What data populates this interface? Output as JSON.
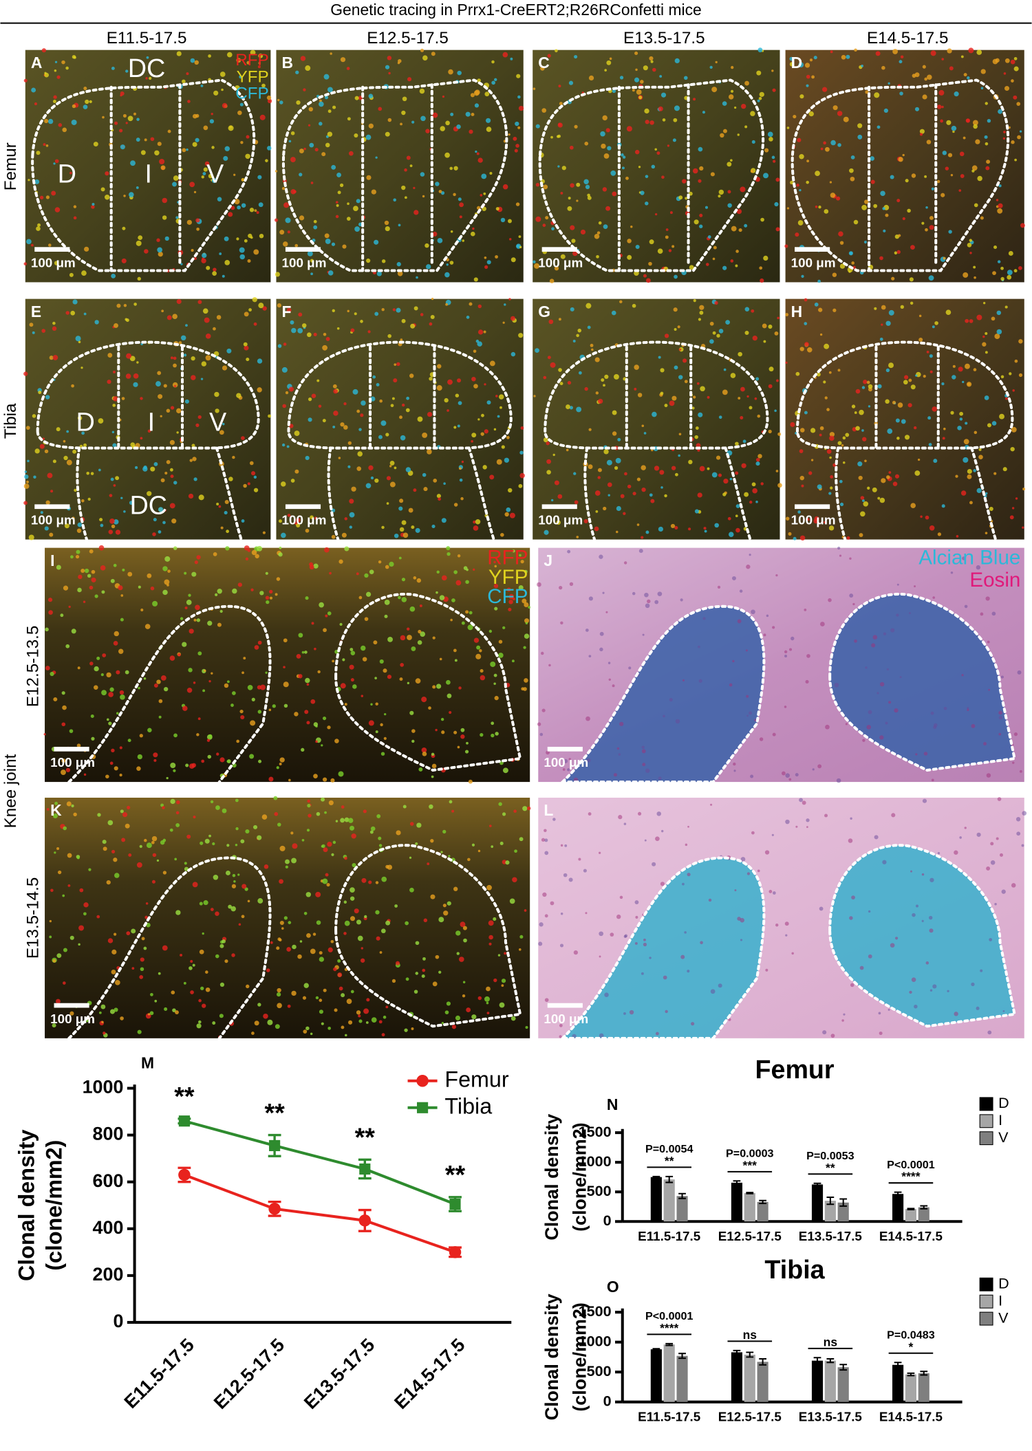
{
  "title": "Genetic tracing in Prrx1-CreERT2;R26RConfetti mice",
  "columns": [
    "E11.5-17.5",
    "E12.5-17.5",
    "E13.5-17.5",
    "E14.5-17.5"
  ],
  "rows": [
    "Femur",
    "Tibia",
    "Knee joint"
  ],
  "knee_rows": [
    "E12.5-13.5",
    "E13.5-14.5"
  ],
  "panels": [
    {
      "letter": "A",
      "scale_bar": "100 μm",
      "overlays": [
        "RFP",
        "YFP",
        "CFP",
        "DC",
        "D",
        "I",
        "V"
      ]
    },
    {
      "letter": "B",
      "scale_bar": "100 μm"
    },
    {
      "letter": "C",
      "scale_bar": "100 μm"
    },
    {
      "letter": "D",
      "scale_bar": "100 μm"
    },
    {
      "letter": "E",
      "scale_bar": "100 μm",
      "overlays": [
        "D",
        "I",
        "V",
        "DC"
      ]
    },
    {
      "letter": "F",
      "scale_bar": "100 μm"
    },
    {
      "letter": "G",
      "scale_bar": "100 μm"
    },
    {
      "letter": "H",
      "scale_bar": "100 μm"
    },
    {
      "letter": "I",
      "scale_bar": "100 μm",
      "overlays": [
        "RFP",
        "YFP",
        "CFP"
      ]
    },
    {
      "letter": "J",
      "scale_bar": "100 μm",
      "overlays": [
        "Alcian Blue",
        "Eosin"
      ]
    },
    {
      "letter": "K",
      "scale_bar": "100 μm"
    },
    {
      "letter": "L",
      "scale_bar": "100 μm"
    }
  ],
  "chart_data": [
    {
      "type": "line",
      "letter": "M",
      "ylabel": [
        "Clonal density",
        "(clone/mm2)"
      ],
      "categories": [
        "E11.5-17.5",
        "E12.5-17.5",
        "E13.5-17.5",
        "E14.5-17.5"
      ],
      "series": [
        {
          "name": "Femur",
          "color": "#e8231e",
          "marker": "circle",
          "values": [
            630,
            485,
            435,
            300
          ],
          "errors": [
            30,
            30,
            45,
            20
          ]
        },
        {
          "name": "Tibia",
          "color": "#2e8b2e",
          "marker": "square",
          "values": [
            860,
            755,
            655,
            505
          ],
          "errors": [
            10,
            45,
            40,
            30
          ]
        }
      ],
      "annotations": [
        "**",
        "**",
        "**",
        "**"
      ],
      "ylim": [
        0,
        1000
      ],
      "yticks": [
        0,
        200,
        400,
        600,
        800,
        1000
      ],
      "legend": "top-right"
    },
    {
      "type": "bar",
      "letter": "N",
      "title": "Femur",
      "ylabel": [
        "Clonal density",
        "(clone/mm2)"
      ],
      "categories": [
        "E11.5-17.5",
        "E12.5-17.5",
        "E13.5-17.5",
        "E14.5-17.5"
      ],
      "series": [
        {
          "name": "D",
          "color": "#000000",
          "values": [
            750,
            655,
            625,
            465
          ],
          "errors": [
            10,
            30,
            20,
            30
          ]
        },
        {
          "name": "I",
          "color": "#a6a6a6",
          "values": [
            710,
            480,
            350,
            210
          ],
          "errors": [
            50,
            10,
            60,
            10
          ]
        },
        {
          "name": "V",
          "color": "#7f7f7f",
          "values": [
            430,
            330,
            320,
            240
          ],
          "errors": [
            40,
            25,
            60,
            25
          ]
        }
      ],
      "annotations": [
        {
          "p": "P=0.0054",
          "stars": "**"
        },
        {
          "p": "P=0.0003",
          "stars": "***"
        },
        {
          "p": "P=0.0053",
          "stars": "**"
        },
        {
          "p": "P<0.0001",
          "stars": "****"
        }
      ],
      "ylim": [
        0,
        1500
      ],
      "yticks": [
        0,
        500,
        1000,
        1500
      ],
      "legend": "top-right"
    },
    {
      "type": "bar",
      "letter": "O",
      "title": "Tibia",
      "ylabel": [
        "Clonal density",
        "(clone/mm2)"
      ],
      "categories": [
        "E11.5-17.5",
        "E12.5-17.5",
        "E13.5-17.5",
        "E14.5-17.5"
      ],
      "series": [
        {
          "name": "D",
          "color": "#000000",
          "values": [
            880,
            830,
            690,
            620
          ],
          "errors": [
            10,
            30,
            50,
            40
          ]
        },
        {
          "name": "I",
          "color": "#a6a6a6",
          "values": [
            960,
            790,
            690,
            460
          ],
          "errors": [
            15,
            40,
            30,
            20
          ]
        },
        {
          "name": "V",
          "color": "#7f7f7f",
          "values": [
            770,
            670,
            580,
            480
          ],
          "errors": [
            40,
            50,
            45,
            30
          ]
        }
      ],
      "annotations": [
        {
          "p": "P<0.0001",
          "stars": "****"
        },
        {
          "stars": "ns"
        },
        {
          "stars": "ns"
        },
        {
          "p": "P=0.0483",
          "stars": "*"
        }
      ],
      "ylim": [
        0,
        1500
      ],
      "yticks": [
        0,
        500,
        1000,
        1500
      ],
      "legend": "top-right"
    }
  ]
}
